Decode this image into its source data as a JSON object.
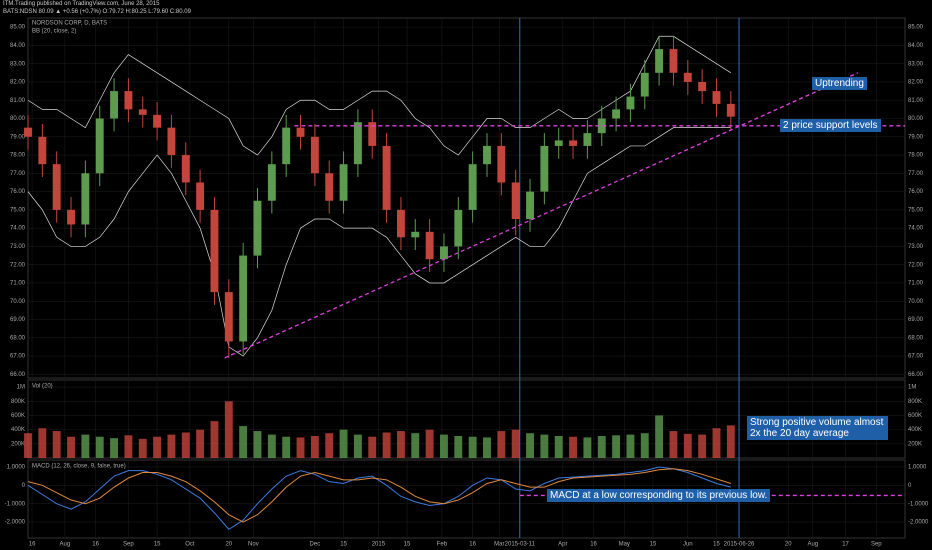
{
  "header": {
    "publisher": "ITM.Trading published on TradingView.com, June 28, 2015",
    "quote": "BATS:NDSN 80.09 ▲ +0.56 (+0.7%) O:79.72 H:80.25 L:79.60 C:80.09"
  },
  "chart_data": {
    "type": "candlestick",
    "title": "NORDSON CORP, D, BATS",
    "indicator_label": "BB (20, close, 2)",
    "up_color": "#5d9b4f",
    "down_color": "#c4453c",
    "bb_color": "#dddddd",
    "grid": true,
    "x": [
      0,
      7,
      14,
      21,
      28,
      35,
      42,
      49,
      56,
      63,
      70,
      77,
      84,
      91,
      98,
      105,
      112,
      119,
      126,
      133,
      140,
      147,
      154,
      161,
      168,
      175,
      182,
      189,
      196,
      203,
      210,
      217,
      224,
      231,
      238,
      245,
      252,
      259,
      266,
      273,
      280,
      287,
      294,
      301,
      308,
      315,
      322,
      329,
      336,
      343
    ],
    "open": [
      79.5,
      79.0,
      77.5,
      75.0,
      74.2,
      77.0,
      80.0,
      81.5,
      80.5,
      80.2,
      79.5,
      78.0,
      76.5,
      75.0,
      70.5,
      67.8,
      72.5,
      75.5,
      77.5,
      79.5,
      79.0,
      77.0,
      75.5,
      77.5,
      79.8,
      78.5,
      75.0,
      73.5,
      73.8,
      72.3,
      73.0,
      75.0,
      77.5,
      78.5,
      76.5,
      74.5,
      76.0,
      78.5,
      78.8,
      78.5,
      79.2,
      80.0,
      80.5,
      81.2,
      82.5,
      83.8,
      82.5,
      82.0,
      81.5,
      80.8
    ],
    "high": [
      80.2,
      79.7,
      78.2,
      75.7,
      77.7,
      80.7,
      82.2,
      82.2,
      81.2,
      80.9,
      80.2,
      78.7,
      77.2,
      75.7,
      71.2,
      73.2,
      76.2,
      78.2,
      80.2,
      80.2,
      79.7,
      77.7,
      78.2,
      80.5,
      80.5,
      79.2,
      75.7,
      74.5,
      74.5,
      73.7,
      75.7,
      78.2,
      79.2,
      79.2,
      77.2,
      76.7,
      79.2,
      79.5,
      79.5,
      79.9,
      80.7,
      81.2,
      81.9,
      83.2,
      84.5,
      84.5,
      83.2,
      82.7,
      82.2,
      81.5
    ],
    "low": [
      78.3,
      76.8,
      74.3,
      73.5,
      73.5,
      76.3,
      79.3,
      79.8,
      79.5,
      78.8,
      77.3,
      75.8,
      74.3,
      69.8,
      66.9,
      67.1,
      71.8,
      74.8,
      76.8,
      78.3,
      76.3,
      74.8,
      74.8,
      76.8,
      77.8,
      74.3,
      72.8,
      72.8,
      71.6,
      71.6,
      72.3,
      74.3,
      76.8,
      75.8,
      73.6,
      73.8,
      75.3,
      77.8,
      77.8,
      77.8,
      78.5,
      79.3,
      79.8,
      80.5,
      81.8,
      81.8,
      81.3,
      80.8,
      80.1,
      79.4
    ],
    "close": [
      79.0,
      77.5,
      75.0,
      74.2,
      77.0,
      80.0,
      81.5,
      80.5,
      80.2,
      79.5,
      78.0,
      76.5,
      75.0,
      70.5,
      67.8,
      72.5,
      75.5,
      77.5,
      79.5,
      79.0,
      77.0,
      75.5,
      77.5,
      79.8,
      78.5,
      75.0,
      73.5,
      73.8,
      72.3,
      73.0,
      75.0,
      77.5,
      78.5,
      76.5,
      74.5,
      76.0,
      78.5,
      78.8,
      78.5,
      79.2,
      80.0,
      80.5,
      81.2,
      82.5,
      83.8,
      82.5,
      82.0,
      81.5,
      80.8,
      80.1
    ],
    "bb_upper": [
      81,
      80.5,
      80.5,
      80,
      79.5,
      81,
      82.5,
      83.5,
      83,
      82.5,
      82,
      81.5,
      81,
      80.5,
      80,
      78.5,
      78,
      79,
      80.5,
      81,
      81,
      80.5,
      80.5,
      81,
      81.5,
      81.5,
      81,
      80,
      79.5,
      78.5,
      78,
      79,
      80,
      80,
      79.5,
      79.5,
      80,
      80.5,
      80,
      80,
      80.5,
      81,
      81.5,
      83,
      84.5,
      84.5,
      84,
      83.5,
      83,
      82.5
    ],
    "bb_lower": [
      76,
      75,
      73.5,
      73,
      73,
      73.5,
      74.5,
      76,
      77,
      78,
      77,
      75.5,
      74,
      71.5,
      67.5,
      67,
      68,
      69.5,
      72,
      74,
      74.5,
      74.5,
      74,
      74,
      74,
      73.5,
      72.5,
      71.5,
      71,
      71,
      71.5,
      72,
      72.5,
      73,
      73.5,
      73,
      73,
      74,
      75.5,
      77,
      77.5,
      78,
      78.5,
      78.5,
      79,
      79.5,
      79.5,
      79.5,
      79.5,
      79.5
    ],
    "xlim": [
      0,
      428
    ],
    "xticks": [
      {
        "value": 2,
        "label": "16"
      },
      {
        "value": 18,
        "label": "Aug"
      },
      {
        "value": 33,
        "label": "16"
      },
      {
        "value": 49,
        "label": "Sep"
      },
      {
        "value": 63,
        "label": "15"
      },
      {
        "value": 79,
        "label": "Oct"
      },
      {
        "value": 98,
        "label": "20"
      },
      {
        "value": 110,
        "label": "Nov"
      },
      {
        "value": 140,
        "label": "Dec"
      },
      {
        "value": 154,
        "label": "15"
      },
      {
        "value": 171,
        "label": "2015"
      },
      {
        "value": 185,
        "label": "15"
      },
      {
        "value": 202,
        "label": "Feb"
      },
      {
        "value": 217,
        "label": "16"
      },
      {
        "value": 230,
        "label": "Mar"
      },
      {
        "value": 240,
        "label": "2015-03-11"
      },
      {
        "value": 261,
        "label": "Apr"
      },
      {
        "value": 276,
        "label": "16"
      },
      {
        "value": 291,
        "label": "May"
      },
      {
        "value": 305,
        "label": "15"
      },
      {
        "value": 322,
        "label": "Jun"
      },
      {
        "value": 336,
        "label": "15"
      },
      {
        "value": 347,
        "label": "2015-06-26"
      },
      {
        "value": 371,
        "label": "20"
      },
      {
        "value": 383,
        "label": "Aug"
      },
      {
        "value": 399,
        "label": "17"
      },
      {
        "value": 414,
        "label": "Sep"
      }
    ],
    "vlines": [
      240,
      347
    ],
    "vline_color": "#2a6fc9",
    "ylim": [
      65.8,
      85.5
    ],
    "yticks": [
      {
        "value": 66,
        "label": "66.00"
      },
      {
        "value": 67,
        "label": "67.00"
      },
      {
        "value": 68,
        "label": "68.00"
      },
      {
        "value": 69,
        "label": "69.00"
      },
      {
        "value": 70,
        "label": "70.00"
      },
      {
        "value": 71,
        "label": "71.00"
      },
      {
        "value": 72,
        "label": "72.00"
      },
      {
        "value": 73,
        "label": "73.00"
      },
      {
        "value": 74,
        "label": "74.00"
      },
      {
        "value": 75,
        "label": "75.00"
      },
      {
        "value": 76,
        "label": "76.00"
      },
      {
        "value": 77,
        "label": "77.00"
      },
      {
        "value": 78,
        "label": "78.00"
      },
      {
        "value": 79,
        "label": "79.00"
      },
      {
        "value": 80,
        "label": "80.00"
      },
      {
        "value": 81,
        "label": "81.00"
      },
      {
        "value": 82,
        "label": "82.00"
      },
      {
        "value": 83,
        "label": "83.00"
      },
      {
        "value": 84,
        "label": "84.00"
      },
      {
        "value": 85,
        "label": "85.00"
      }
    ],
    "trend_lines": [
      {
        "x": [
          96,
          405
        ],
        "y": [
          66.9,
          82.5
        ],
        "color": "#e040e0"
      },
      {
        "x": [
          130,
          428
        ],
        "y": [
          79.6,
          79.6
        ],
        "color": "#e040e0"
      }
    ],
    "annotations": [
      "Uptrending",
      "2 price support levels"
    ],
    "volume": {
      "label": "Vol (20)",
      "values": [
        350000,
        420000,
        380000,
        300000,
        330000,
        300000,
        280000,
        320000,
        270000,
        300000,
        330000,
        360000,
        400000,
        520000,
        800000,
        450000,
        380000,
        330000,
        300000,
        290000,
        310000,
        350000,
        400000,
        330000,
        300000,
        360000,
        380000,
        350000,
        400000,
        330000,
        310000,
        300000,
        290000,
        380000,
        400000,
        350000,
        330000,
        310000,
        300000,
        290000,
        310000,
        320000,
        330000,
        350000,
        600000,
        380000,
        340000,
        330000,
        420000,
        460000
      ],
      "ylim": [
        0,
        1100000
      ],
      "yticks": [
        {
          "value": 1000000,
          "label": "1M"
        },
        {
          "value": 800000,
          "label": "800K"
        },
        {
          "value": 600000,
          "label": "600K"
        },
        {
          "value": 400000,
          "label": "400K"
        },
        {
          "value": 200000,
          "label": "200K"
        }
      ],
      "annotation": "Strong positive volume almost 2x the 20 day average"
    },
    "macd": {
      "label": "MACD (12, 26, close, 9, false, true)",
      "macd_color": "#3d7be0",
      "signal_color": "#e08a3d",
      "macd": [
        0,
        -0.5,
        -1,
        -1.3,
        -0.9,
        -0.2,
        0.5,
        0.8,
        0.8,
        0.6,
        0.3,
        -0.2,
        -0.7,
        -1.5,
        -2.4,
        -1.9,
        -1.0,
        -0.2,
        0.5,
        0.8,
        0.6,
        0.2,
        0.1,
        0.4,
        0.5,
        0.0,
        -0.6,
        -0.9,
        -1.1,
        -1.0,
        -0.6,
        0.0,
        0.4,
        0.3,
        -0.2,
        -0.3,
        0.1,
        0.4,
        0.45,
        0.5,
        0.55,
        0.6,
        0.7,
        0.8,
        1.0,
        0.9,
        0.7,
        0.4,
        0.1,
        -0.1
      ],
      "signal": [
        0.2,
        0,
        -0.4,
        -0.8,
        -1.0,
        -0.7,
        -0.1,
        0.4,
        0.7,
        0.7,
        0.5,
        0.2,
        -0.3,
        -0.9,
        -1.6,
        -2.0,
        -1.6,
        -0.9,
        -0.1,
        0.5,
        0.7,
        0.5,
        0.3,
        0.3,
        0.4,
        0.3,
        -0.1,
        -0.6,
        -0.9,
        -1.0,
        -0.8,
        -0.4,
        0.1,
        0.3,
        0.1,
        -0.1,
        -0.1,
        0.2,
        0.4,
        0.45,
        0.5,
        0.55,
        0.6,
        0.7,
        0.85,
        0.9,
        0.8,
        0.6,
        0.35,
        0.1
      ],
      "ylim": [
        -2.87,
        1.38
      ],
      "yticks": [
        {
          "value": 1,
          "label": "1.0000"
        },
        {
          "value": 0,
          "label": "0"
        },
        {
          "value": -1,
          "label": "-1.0000"
        },
        {
          "value": -2,
          "label": "-2.0000"
        }
      ],
      "trend_lines": [
        {
          "x": [
            240,
            428
          ],
          "y": [
            -0.55,
            -0.55
          ],
          "color": "#e040e0"
        }
      ],
      "annotation": "MACD at a low corresponding to its previous low."
    }
  }
}
